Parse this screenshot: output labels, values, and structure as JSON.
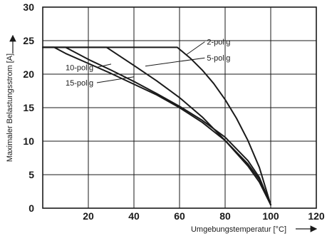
{
  "chart_data": {
    "type": "line",
    "xlabel": "Umgebungstemperatur [°C]",
    "ylabel": "Maximaler Belastungsstrom [A]",
    "xlim": [
      0,
      120
    ],
    "ylim": [
      0,
      30
    ],
    "xticks": [
      20,
      40,
      60,
      80,
      100,
      120
    ],
    "yticks": [
      0,
      5,
      10,
      15,
      20,
      25,
      30
    ],
    "grid": true,
    "series": [
      {
        "name": "2-polig",
        "x": [
          0,
          59,
          65,
          70,
          75,
          80,
          85,
          90,
          95,
          100
        ],
        "y": [
          24,
          24,
          22.3,
          20.6,
          18.6,
          16.2,
          13.4,
          10.1,
          6.1,
          0.5
        ]
      },
      {
        "name": "5-polig",
        "x": [
          0,
          28,
          40,
          50,
          60,
          70,
          80,
          90,
          95,
          100
        ],
        "y": [
          24,
          24,
          21.3,
          19.0,
          16.5,
          13.6,
          10.1,
          6.3,
          3.9,
          0.5
        ]
      },
      {
        "name": "10-polig",
        "x": [
          0,
          10,
          20,
          30,
          40,
          50,
          60,
          70,
          80,
          90,
          95,
          100
        ],
        "y": [
          24,
          24,
          22.2,
          20.6,
          18.9,
          17.1,
          15.2,
          13.1,
          10.6,
          7.1,
          4.6,
          0.5
        ]
      },
      {
        "name": "15-polig",
        "x": [
          0,
          5,
          10,
          20,
          30,
          40,
          50,
          60,
          70,
          80,
          90,
          95,
          100
        ],
        "y": [
          24,
          24,
          23.1,
          21.6,
          20.1,
          18.5,
          16.9,
          15.0,
          12.8,
          10.1,
          6.6,
          4.3,
          0.5
        ]
      }
    ],
    "annotations": [
      {
        "label": "2-polig",
        "series": "2-polig",
        "text_at": [
          72,
          24.4
        ],
        "point_at": [
          63,
          22.9
        ]
      },
      {
        "label": "5-polig",
        "series": "5-polig",
        "text_at": [
          72,
          22.0
        ],
        "point_at": [
          45,
          21.2
        ]
      },
      {
        "label": "10-polig",
        "series": "10-polig",
        "text_at": [
          10,
          20.6
        ],
        "point_at": [
          30,
          21.5
        ]
      },
      {
        "label": "15-polig",
        "series": "15-polig",
        "text_at": [
          10,
          18.3
        ],
        "point_at": [
          40,
          19.6
        ]
      }
    ]
  }
}
